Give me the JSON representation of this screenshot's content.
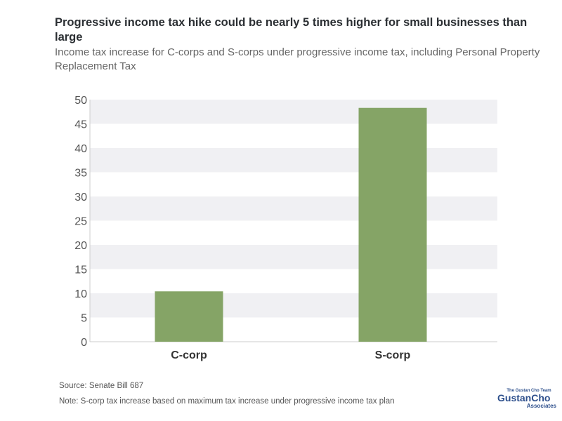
{
  "chart_data": {
    "type": "bar",
    "title": "Progressive income tax hike could be nearly 5 times higher for small businesses than large",
    "subtitle": "Income tax increase for C-corps and S-corps under progressive income tax, including Personal Property Replacement Tax",
    "categories": [
      "C-corp",
      "S-corp"
    ],
    "values": [
      10.4,
      48.3
    ],
    "ylim": [
      0,
      50
    ],
    "yticks": [
      0,
      5,
      10,
      15,
      20,
      25,
      30,
      35,
      40,
      45,
      50
    ],
    "xlabel": "",
    "ylabel": "",
    "grid": "alternating horizontal bands",
    "bar_color": "#85a466"
  },
  "footer": {
    "source": "Source: Senate Bill 687",
    "note": "Note: S-corp tax increase based on maximum tax increase under progressive income tax plan"
  },
  "logo": {
    "tagline": "The Gustan Cho Team",
    "name": "GustanCho",
    "sub": "Associates"
  }
}
